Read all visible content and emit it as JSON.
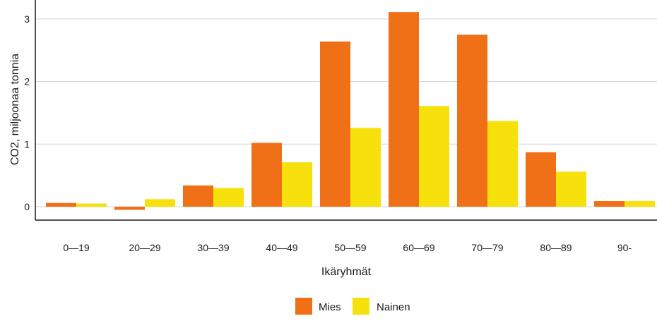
{
  "chart_data": {
    "type": "bar",
    "title": "",
    "xlabel": "Ikäryhmät",
    "ylabel": "CO2, miljoonaa tonnia",
    "categories": [
      "0—19",
      "20—29",
      "30—39",
      "40—49",
      "50—59",
      "60—69",
      "70—79",
      "80—89",
      "90-"
    ],
    "series": [
      {
        "name": "Mies",
        "color": "#f07018",
        "values": [
          0.06,
          -0.05,
          0.34,
          1.02,
          2.64,
          3.11,
          2.75,
          0.87,
          0.09
        ]
      },
      {
        "name": "Nainen",
        "color": "#f7e10c",
        "values": [
          0.05,
          0.12,
          0.3,
          0.71,
          1.26,
          1.61,
          1.37,
          0.56,
          0.09
        ]
      }
    ],
    "yticks": [
      "0",
      "1",
      "2",
      "3"
    ],
    "ylim": [
      -0.2,
      3.25
    ],
    "grid": true,
    "legend_position": "bottom"
  }
}
